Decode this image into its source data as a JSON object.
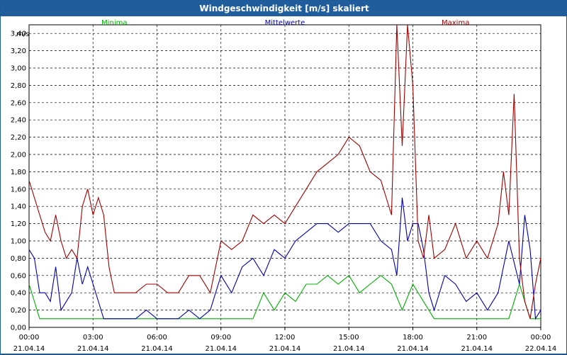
{
  "window": {
    "title": "Windgeschwindigkeit [m/s] skaliert"
  },
  "chart_data": {
    "type": "line",
    "title": "Windgeschwindigkeit [m/s] skaliert",
    "ylabel": "m/s",
    "ylim": [
      0,
      3.5
    ],
    "xlim": [
      0,
      24
    ],
    "grid": true,
    "legend": "top",
    "y_ticks": [
      "0,00",
      "0,20",
      "0,40",
      "0,60",
      "0,80",
      "1,00",
      "1,20",
      "1,40",
      "1,60",
      "1,80",
      "2,00",
      "2,20",
      "2,40",
      "2,60",
      "2,80",
      "3,00",
      "3,20",
      "3,40"
    ],
    "x_ticks": [
      {
        "time": "00:00",
        "date": "21.04.14"
      },
      {
        "time": "03:00",
        "date": "21.04.14"
      },
      {
        "time": "06:00",
        "date": "21.04.14"
      },
      {
        "time": "09:00",
        "date": "21.04.14"
      },
      {
        "time": "12:00",
        "date": "21.04.14"
      },
      {
        "time": "15:00",
        "date": "21.04.14"
      },
      {
        "time": "18:00",
        "date": "21.04.14"
      },
      {
        "time": "21:00",
        "date": "21.04.14"
      },
      {
        "time": "00:00",
        "date": "22.04.14"
      }
    ],
    "series": [
      {
        "name": "Minima",
        "color": "#00b000",
        "x": [
          0.0,
          0.25,
          0.5,
          1.0,
          1.5,
          2.0,
          2.5,
          3.0,
          3.5,
          4.0,
          4.5,
          5.0,
          5.5,
          6.0,
          6.5,
          7.0,
          7.5,
          8.0,
          8.5,
          9.0,
          9.5,
          10.0,
          10.5,
          11.0,
          11.5,
          12.0,
          12.5,
          13.0,
          13.5,
          14.0,
          14.5,
          15.0,
          15.5,
          16.0,
          16.5,
          17.0,
          17.5,
          18.0,
          18.5,
          19.0,
          19.5,
          20.0,
          20.5,
          21.0,
          21.5,
          22.0,
          22.5,
          23.0,
          23.5,
          24.0
        ],
        "y": [
          0.5,
          0.3,
          0.1,
          0.1,
          0.1,
          0.1,
          0.1,
          0.1,
          0.1,
          0.1,
          0.1,
          0.1,
          0.1,
          0.1,
          0.1,
          0.1,
          0.1,
          0.1,
          0.1,
          0.1,
          0.1,
          0.1,
          0.1,
          0.4,
          0.2,
          0.4,
          0.3,
          0.5,
          0.5,
          0.6,
          0.5,
          0.6,
          0.4,
          0.5,
          0.6,
          0.5,
          0.2,
          0.5,
          0.3,
          0.1,
          0.1,
          0.1,
          0.1,
          0.1,
          0.1,
          0.1,
          0.1,
          0.5,
          0.1,
          0.1
        ]
      },
      {
        "name": "Mittelwerte",
        "color": "#0000b0",
        "x": [
          0.0,
          0.25,
          0.5,
          0.75,
          1.0,
          1.25,
          1.5,
          1.75,
          2.0,
          2.25,
          2.5,
          2.75,
          3.0,
          3.25,
          3.5,
          3.75,
          4.0,
          4.5,
          5.0,
          5.5,
          6.0,
          6.5,
          7.0,
          7.5,
          8.0,
          8.5,
          9.0,
          9.5,
          10.0,
          10.5,
          11.0,
          11.5,
          12.0,
          12.5,
          13.0,
          13.5,
          14.0,
          14.5,
          15.0,
          15.5,
          16.0,
          16.5,
          17.0,
          17.25,
          17.5,
          17.75,
          18.0,
          18.25,
          18.5,
          18.75,
          19.0,
          19.5,
          20.0,
          20.5,
          21.0,
          21.5,
          22.0,
          22.5,
          23.0,
          23.25,
          23.5,
          23.75,
          24.0
        ],
        "y": [
          0.9,
          0.8,
          0.4,
          0.4,
          0.3,
          0.7,
          0.2,
          0.3,
          0.4,
          0.8,
          0.5,
          0.7,
          0.5,
          0.3,
          0.1,
          0.1,
          0.1,
          0.1,
          0.1,
          0.2,
          0.1,
          0.1,
          0.1,
          0.2,
          0.1,
          0.2,
          0.6,
          0.4,
          0.7,
          0.8,
          0.6,
          0.9,
          0.8,
          1.0,
          1.1,
          1.2,
          1.2,
          1.1,
          1.2,
          1.2,
          1.2,
          1.0,
          0.9,
          0.6,
          1.5,
          1.0,
          1.2,
          1.2,
          0.9,
          0.4,
          0.2,
          0.6,
          0.5,
          0.3,
          0.4,
          0.2,
          0.4,
          1.0,
          0.5,
          1.3,
          0.9,
          0.1,
          0.2
        ]
      },
      {
        "name": "Maxima",
        "color": "#a00000",
        "x": [
          0.0,
          0.25,
          0.5,
          0.75,
          1.0,
          1.25,
          1.5,
          1.75,
          2.0,
          2.25,
          2.5,
          2.75,
          3.0,
          3.25,
          3.5,
          3.75,
          4.0,
          4.5,
          5.0,
          5.5,
          6.0,
          6.5,
          7.0,
          7.5,
          8.0,
          8.5,
          9.0,
          9.5,
          10.0,
          10.5,
          11.0,
          11.5,
          12.0,
          12.5,
          13.0,
          13.5,
          14.0,
          14.5,
          15.0,
          15.5,
          16.0,
          16.5,
          17.0,
          17.25,
          17.5,
          17.75,
          18.0,
          18.25,
          18.5,
          18.75,
          19.0,
          19.5,
          20.0,
          20.5,
          21.0,
          21.5,
          22.0,
          22.25,
          22.5,
          22.75,
          23.0,
          23.25,
          23.5,
          23.75,
          24.0
        ],
        "y": [
          1.7,
          1.5,
          1.3,
          1.1,
          1.0,
          1.3,
          1.0,
          0.8,
          0.9,
          0.8,
          1.4,
          1.6,
          1.3,
          1.5,
          1.3,
          0.7,
          0.4,
          0.4,
          0.4,
          0.5,
          0.5,
          0.4,
          0.4,
          0.6,
          0.6,
          0.4,
          1.0,
          0.9,
          1.0,
          1.3,
          1.2,
          1.3,
          1.2,
          1.4,
          1.6,
          1.8,
          1.9,
          2.0,
          2.2,
          2.1,
          1.8,
          1.7,
          1.3,
          3.5,
          2.1,
          3.5,
          2.8,
          1.0,
          0.8,
          1.3,
          0.8,
          0.9,
          1.2,
          0.8,
          1.0,
          0.8,
          1.2,
          1.8,
          1.3,
          2.7,
          0.8,
          0.3,
          0.1,
          0.5,
          0.8
        ]
      }
    ]
  }
}
